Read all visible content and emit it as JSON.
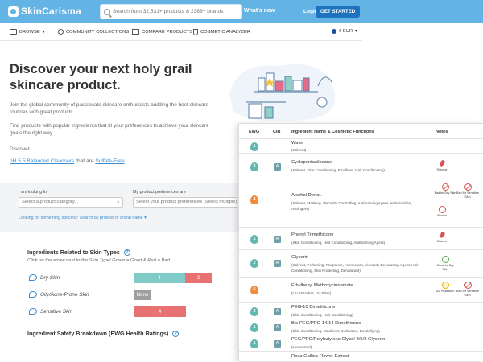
{
  "header": {
    "logo": "SkinCarisma",
    "search_placeholder": "Search from 32,531+ products & 2388+ brands",
    "whats_new": "What's new",
    "login": "Login",
    "get_started": "GET STARTED"
  },
  "subnav": {
    "browse": "BROWSE",
    "community": "COMMUNITY COLLECTIONS",
    "compare": "COMPARE PRODUCTS",
    "analyzer": "COSMETIC ANALYZER",
    "currency": "€ EUR"
  },
  "hero": {
    "title": "Discover your next holy grail skincare product.",
    "p1": "Join the global community of passionate skincare enthusiasts building the best skincare routines with great products.",
    "p2": "Find products with popular ingredients that fit your preferences to achieve your skincare goals the right way.",
    "discover": "Discover....",
    "link1": "pH 5.5 Balanced Cleansers",
    "link_joiner": "that are",
    "link2": "Sulfate-Free"
  },
  "filter": {
    "looking_label": "I am looking for",
    "looking_value": "Select a product category...",
    "prefs_label": "My product preferences are",
    "prefs_value": "Select your product preferences (Select multiple)",
    "help_link": "Looking for something specific? Search by product or brand name"
  },
  "skin_types": {
    "title": "Ingredients Related to Skin Types",
    "instructions": "Click on the arrow next to the Skin Type! Green = Good & Red = Bad",
    "rows": [
      {
        "label": "Dry Skin",
        "good": "4",
        "bad": "2"
      },
      {
        "label": "Oily/Acne-Prone Skin",
        "none": "None"
      },
      {
        "label": "Sensitive Skin",
        "bad": "4"
      }
    ],
    "safety_title": "Ingredient Safety Breakdown (EWG Health Ratings)"
  },
  "table": {
    "headers": {
      "ewg": "EWG",
      "cir": "CIR",
      "name": "Ingredient Name & Cosmetic Functions",
      "notes": "Notes"
    },
    "rows": [
      {
        "ewg": "1",
        "cir": "",
        "name": "Water",
        "func": "(Solvent)"
      },
      {
        "ewg": "3",
        "cir": "A",
        "name": "Cyclopentasiloxane",
        "func": "(Solvent, Skin Conditioning, Emollient, Hair Conditioning)",
        "notes": [
          "Silicone"
        ]
      },
      {
        "ewg": "4",
        "cir": "",
        "name": "Alcohol Denat.",
        "func": "(Solvent, Masking, Viscosity Controlling, Antifoaming Agent, Antimicrobial, Astringent)",
        "notes": [
          "Bad for Dry Skin",
          "Bad for Sensitive Skin",
          "Alcohol"
        ]
      },
      {
        "ewg": "1",
        "cir": "A",
        "name": "Phenyl Trimethicone",
        "func": "(Skin Conditioning, Hair Conditioning, Antifoaming Agent)",
        "notes": [
          "Silicone"
        ]
      },
      {
        "ewg": "2",
        "cir": "A",
        "name": "Glycerin",
        "func": "(Solvent, Perfuming, Fragrance, Humectant, Viscosity Decreasing Agent, Hair Conditioning, Skin Protecting, Denaturant)",
        "notes": [
          "Good for Dry Skin"
        ]
      },
      {
        "ewg": "6",
        "cir": "",
        "name": "Ethylhexyl Methoxycinnamate",
        "func": "(UV Absorber, UV Filter)",
        "notes": [
          "UV Protection",
          "Bad for Sensitive Skin"
        ]
      },
      {
        "ewg": "3",
        "cir": "A",
        "name": "PEG-10 Dimethicone",
        "func": "(Skin Conditioning, Hair Conditioning)"
      },
      {
        "ewg": "1",
        "cir": "A",
        "name": "Bis-PEG/PPG-14/14 Dimethicone",
        "func": "(Skin Conditioning, Emollient, Surfactant, Emulsifying)"
      },
      {
        "ewg": "1",
        "cir": "A",
        "name": "PEG/PPG/Polybutylene Glycol-8/5/3 Glycerin",
        "func": "(Humectant)"
      },
      {
        "ewg": "",
        "cir": "",
        "name": "Rosa Gallica Flower Extract",
        "func": ""
      }
    ]
  }
}
